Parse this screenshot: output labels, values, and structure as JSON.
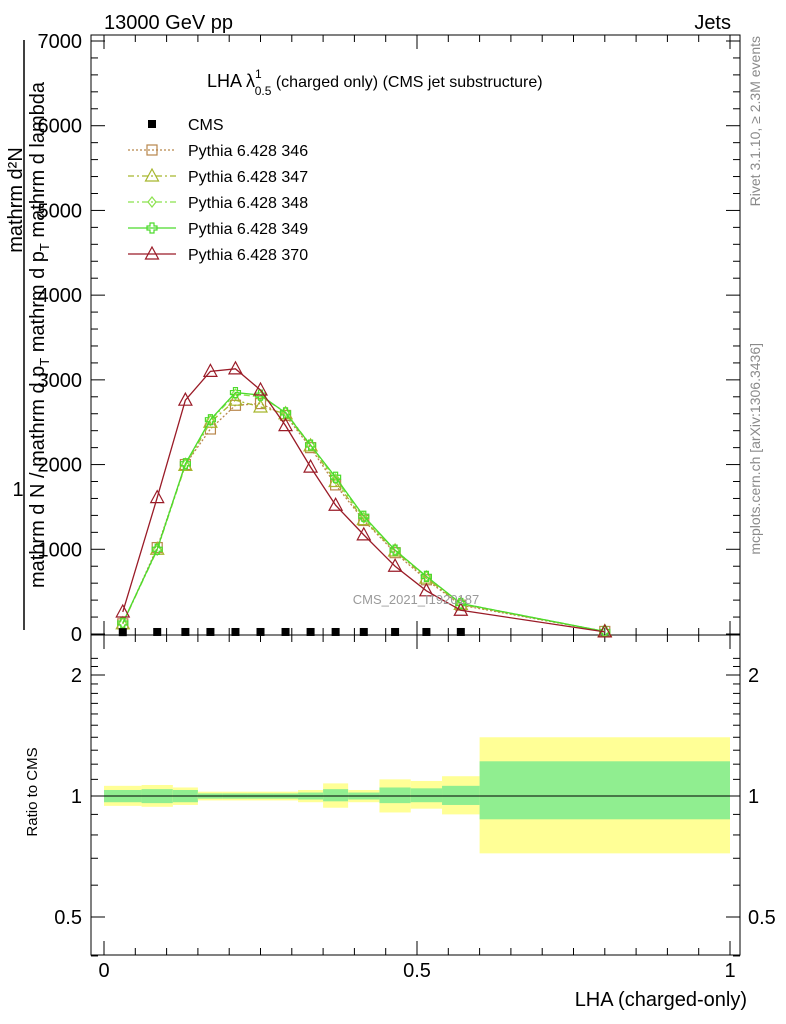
{
  "header": {
    "left": "13000 GeV pp",
    "right": "Jets"
  },
  "side_texts": {
    "rivet": "Rivet 3.1.10, ≥ 2.3M events",
    "mcplots": "mcplots.cern.ch [arXiv:1306.3436]"
  },
  "watermark": "CMS_2021_I1920187",
  "plot_title": {
    "main": "LHA λ",
    "sup": "1",
    "sub": "0.5",
    "rest": " (charged only) (CMS jet substructure)"
  },
  "main_ylabel": {
    "numer_one": "1",
    "numer": "mathrm d²N",
    "denom": "mathrm d N / mathrm d p",
    "denom_sub": "T",
    "denom_rest": " mathrm d p",
    "denom_sub2": "T",
    "denom_rest2": " mathrm d lambda"
  },
  "ratio_ylabel": "Ratio to CMS",
  "xlabel": "LHA (charged-only)",
  "legend": [
    {
      "label": "CMS",
      "color": "#000000",
      "marker": "square-filled",
      "dash": "none"
    },
    {
      "label": "Pythia 6.428 346",
      "color": "#b8864b",
      "marker": "square-open",
      "dash": "dotted"
    },
    {
      "label": "Pythia 6.428 347",
      "color": "#a7b62d",
      "marker": "triangle-open",
      "dash": "dashdot"
    },
    {
      "label": "Pythia 6.428 348",
      "color": "#8be24d",
      "marker": "diamond-open",
      "dash": "dashdot"
    },
    {
      "label": "Pythia 6.428 349",
      "color": "#4cdb2c",
      "marker": "cross-open",
      "dash": "solid"
    },
    {
      "label": "Pythia 6.428 370",
      "color": "#9a1b27",
      "marker": "triangle-open",
      "dash": "solid"
    }
  ],
  "chart_data": {
    "type": "line",
    "title": "LHA λ^1_0.5 (charged only) (CMS jet substructure)",
    "xlabel": "LHA (charged-only)",
    "xlim": [
      0,
      1
    ],
    "ylim": [
      0,
      7000
    ],
    "x_ticks": [
      {
        "value": 0,
        "label": "0"
      },
      {
        "value": 0.5,
        "label": "0.5"
      },
      {
        "value": 1,
        "label": "1"
      }
    ],
    "y_ticks": [
      {
        "value": 0,
        "label": "0"
      },
      {
        "value": 1000,
        "label": "1000"
      },
      {
        "value": 2000,
        "label": "2000"
      },
      {
        "value": 3000,
        "label": "3000"
      },
      {
        "value": 4000,
        "label": "4000"
      },
      {
        "value": 5000,
        "label": "5000"
      },
      {
        "value": 6000,
        "label": "6000"
      },
      {
        "value": 7000,
        "label": "7000"
      }
    ],
    "x": [
      0.03,
      0.085,
      0.13,
      0.17,
      0.21,
      0.25,
      0.29,
      0.33,
      0.37,
      0.415,
      0.465,
      0.515,
      0.57,
      0.8
    ],
    "cms": {
      "name": "CMS",
      "x": [
        0.03,
        0.085,
        0.13,
        0.17,
        0.21,
        0.25,
        0.29,
        0.33,
        0.37,
        0.415,
        0.465,
        0.515,
        0.57
      ],
      "values": [
        10,
        12,
        12,
        12,
        12,
        12,
        12,
        12,
        12,
        12,
        12,
        12,
        12
      ]
    },
    "series": [
      {
        "name": "Pythia 6.428 346",
        "values": [
          120,
          1020,
          2000,
          2420,
          2700,
          2720,
          2580,
          2200,
          1760,
          1340,
          960,
          640,
          340,
          30
        ]
      },
      {
        "name": "Pythia 6.428 347",
        "values": [
          120,
          1000,
          1990,
          2500,
          2760,
          2680,
          2600,
          2220,
          1800,
          1350,
          980,
          660,
          350,
          30
        ]
      },
      {
        "name": "Pythia 6.428 348",
        "values": [
          130,
          990,
          2000,
          2520,
          2830,
          2800,
          2620,
          2230,
          1830,
          1370,
          990,
          680,
          360,
          30
        ]
      },
      {
        "name": "Pythia 6.428 349",
        "values": [
          130,
          1000,
          2010,
          2530,
          2850,
          2820,
          2610,
          2230,
          1850,
          1390,
          990,
          680,
          360,
          30
        ]
      },
      {
        "name": "Pythia 6.428 370",
        "values": [
          260,
          1610,
          2760,
          3100,
          3130,
          2880,
          2460,
          1970,
          1520,
          1170,
          800,
          510,
          280,
          25
        ]
      }
    ],
    "ratio": {
      "ylim": [
        0.3,
        2.3
      ],
      "y_ticks": [
        {
          "value": 0.5,
          "label": "0.5"
        },
        {
          "value": 1,
          "label": "1"
        },
        {
          "value": 2,
          "label": "2"
        }
      ],
      "bins": [
        {
          "x0": 0.0,
          "x1": 0.06,
          "inner": [
            0.965,
            1.035
          ],
          "outer": [
            0.945,
            1.06
          ]
        },
        {
          "x0": 0.06,
          "x1": 0.11,
          "inner": [
            0.96,
            1.04
          ],
          "outer": [
            0.94,
            1.065
          ]
        },
        {
          "x0": 0.11,
          "x1": 0.15,
          "inner": [
            0.965,
            1.035
          ],
          "outer": [
            0.95,
            1.05
          ]
        },
        {
          "x0": 0.15,
          "x1": 0.19,
          "inner": [
            0.985,
            1.015
          ],
          "outer": [
            0.975,
            1.025
          ]
        },
        {
          "x0": 0.19,
          "x1": 0.23,
          "inner": [
            0.985,
            1.015
          ],
          "outer": [
            0.975,
            1.025
          ]
        },
        {
          "x0": 0.23,
          "x1": 0.27,
          "inner": [
            0.985,
            1.015
          ],
          "outer": [
            0.975,
            1.025
          ]
        },
        {
          "x0": 0.27,
          "x1": 0.31,
          "inner": [
            0.985,
            1.015
          ],
          "outer": [
            0.975,
            1.025
          ]
        },
        {
          "x0": 0.31,
          "x1": 0.35,
          "inner": [
            0.98,
            1.02
          ],
          "outer": [
            0.965,
            1.035
          ]
        },
        {
          "x0": 0.35,
          "x1": 0.39,
          "inner": [
            0.97,
            1.04
          ],
          "outer": [
            0.935,
            1.075
          ]
        },
        {
          "x0": 0.39,
          "x1": 0.44,
          "inner": [
            0.98,
            1.02
          ],
          "outer": [
            0.965,
            1.035
          ]
        },
        {
          "x0": 0.44,
          "x1": 0.49,
          "inner": [
            0.96,
            1.05
          ],
          "outer": [
            0.91,
            1.1
          ]
        },
        {
          "x0": 0.49,
          "x1": 0.54,
          "inner": [
            0.965,
            1.045
          ],
          "outer": [
            0.93,
            1.09
          ]
        },
        {
          "x0": 0.54,
          "x1": 0.6,
          "inner": [
            0.95,
            1.06
          ],
          "outer": [
            0.9,
            1.12
          ]
        },
        {
          "x0": 0.6,
          "x1": 1.0,
          "inner": [
            0.875,
            1.22
          ],
          "outer": [
            0.72,
            1.4
          ]
        }
      ],
      "inner_color": "#90ee90",
      "outer_color": "#ffff96"
    }
  }
}
